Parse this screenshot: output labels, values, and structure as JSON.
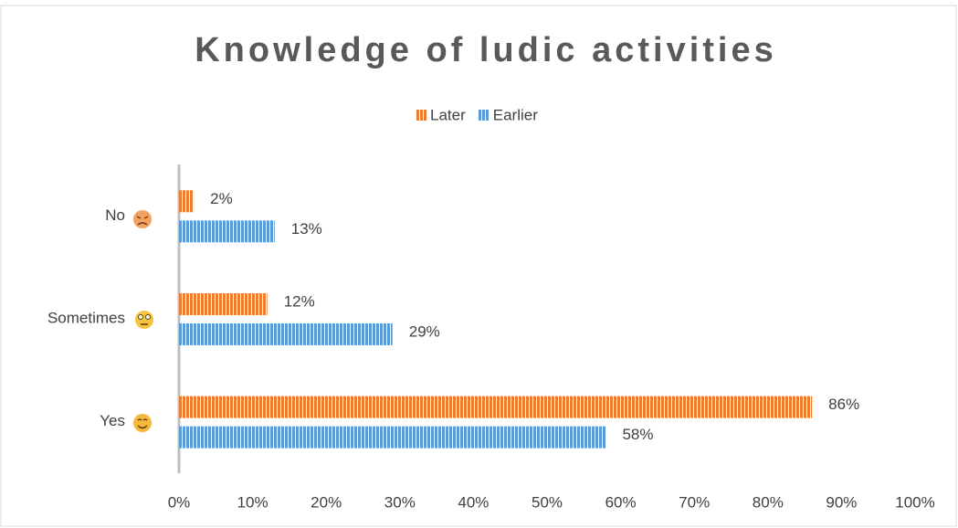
{
  "chart_data": {
    "type": "bar",
    "orientation": "horizontal",
    "title": "Knowledge of ludic activities",
    "categories": [
      "No",
      "Sometimes",
      "Yes"
    ],
    "series": [
      {
        "name": "Later",
        "color": "#ED7D31",
        "values": [
          2,
          12,
          86
        ],
        "value_labels": [
          "2%",
          "12%",
          "86%"
        ]
      },
      {
        "name": "Earlier",
        "color": "#5B9BD5",
        "values": [
          13,
          29,
          58
        ],
        "value_labels": [
          "13%",
          "29%",
          "58%"
        ]
      }
    ],
    "xlim": [
      0,
      100
    ],
    "xticks": [
      {
        "value": 0,
        "label": "0%"
      },
      {
        "value": 10,
        "label": "10%"
      },
      {
        "value": 20,
        "label": "20%"
      },
      {
        "value": 30,
        "label": "30%"
      },
      {
        "value": 40,
        "label": "40%"
      },
      {
        "value": 50,
        "label": "50%"
      },
      {
        "value": 60,
        "label": "60%"
      },
      {
        "value": 70,
        "label": "70%"
      },
      {
        "value": 80,
        "label": "80%"
      },
      {
        "value": 90,
        "label": "90%"
      },
      {
        "value": 100,
        "label": "100%"
      }
    ],
    "legend": "top",
    "grid": false
  }
}
